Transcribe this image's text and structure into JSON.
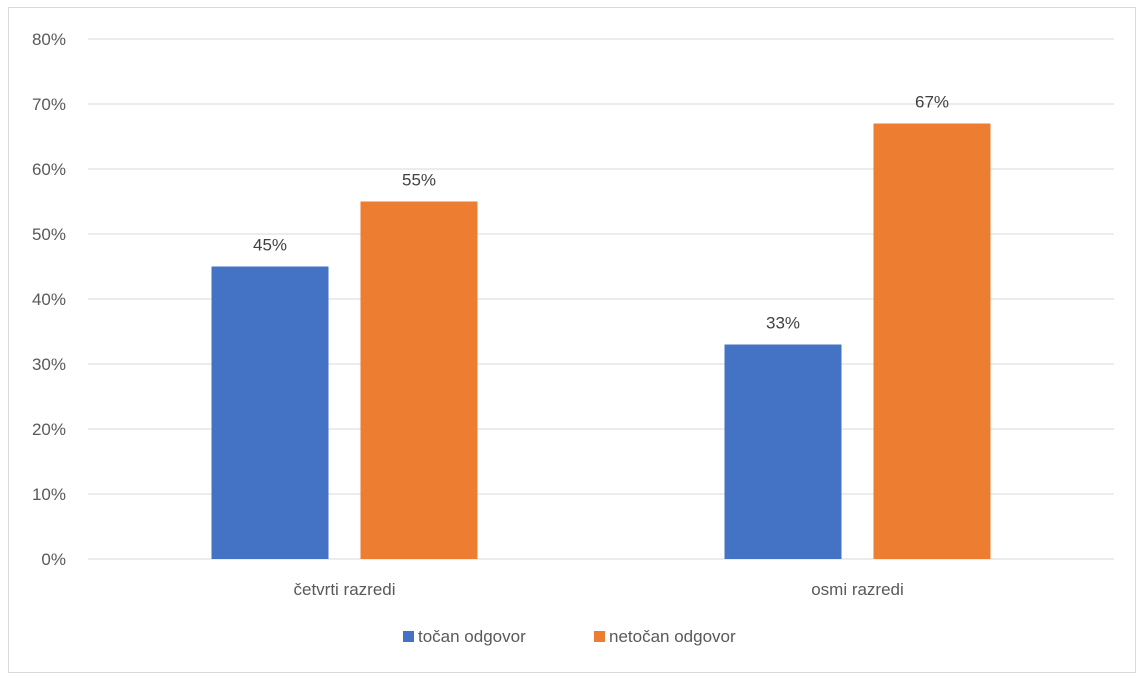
{
  "chart_data": {
    "type": "bar",
    "categories": [
      "četvrti razredi",
      "osmi razredi"
    ],
    "series": [
      {
        "name": "točan odgovor",
        "values": [
          45,
          33
        ],
        "color": "#4472c4"
      },
      {
        "name": "netočan odgovor",
        "values": [
          55,
          67
        ],
        "color": "#ed7d31"
      }
    ],
    "ylim": [
      0,
      80
    ],
    "y_ticks": [
      0,
      10,
      20,
      30,
      40,
      50,
      60,
      70,
      80
    ],
    "y_tick_labels": [
      "0%",
      "10%",
      "20%",
      "30%",
      "40%",
      "50%",
      "60%",
      "70%",
      "80%"
    ],
    "data_labels": [
      [
        "45%",
        "33%"
      ],
      [
        "55%",
        "67%"
      ]
    ],
    "grid": true,
    "legend_position": "bottom",
    "gridline_color": "#d9d9d9"
  }
}
